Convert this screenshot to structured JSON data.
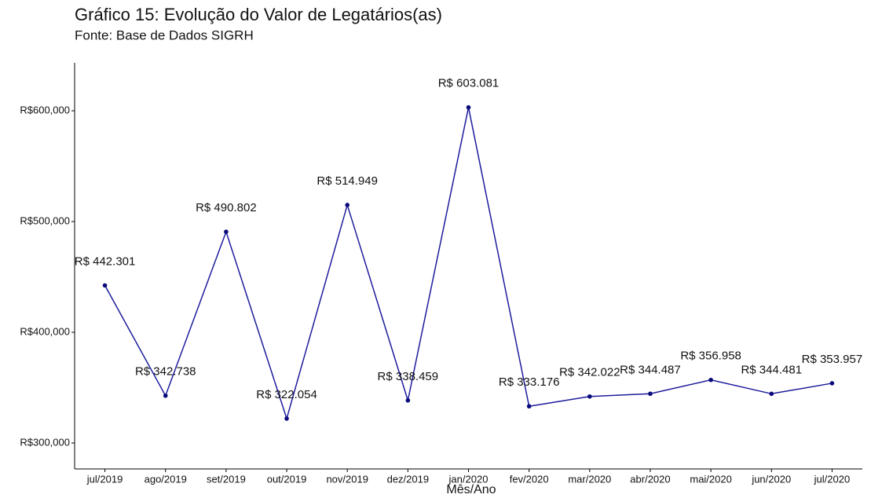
{
  "chart_data": {
    "type": "line",
    "title": "Gráfico 15: Evolução do Valor de Legatários(as)",
    "subtitle": "Fonte: Base de Dados SIGRH",
    "x_label": "Mês/Ano",
    "categories": [
      "jul/2019",
      "ago/2019",
      "set/2019",
      "out/2019",
      "nov/2019",
      "dez/2019",
      "jan/2020",
      "fev/2020",
      "mar/2020",
      "abr/2020",
      "mai/2020",
      "jun/2020",
      "jul/2020"
    ],
    "series": [
      {
        "name": "Valor",
        "color": "#1c1c9c",
        "values": [
          442301,
          342738,
          490802,
          322054,
          514949,
          338459,
          603081,
          333176,
          342022,
          344487,
          356958,
          344481,
          353957
        ],
        "value_labels": [
          "R$ 442.301",
          "R$ 342.738",
          "R$ 490.802",
          "R$ 322.054",
          "R$ 514.949",
          "R$ 338.459",
          "R$ 603.081",
          "R$ 333.176",
          "R$ 342.022",
          "R$ 344.487",
          "R$ 356.958",
          "R$ 344.481",
          "R$ 353.957"
        ]
      }
    ],
    "ylim": [
      276600,
      643300
    ],
    "yticks": [
      {
        "value": 300000,
        "label": "R$300,000"
      },
      {
        "value": 400000,
        "label": "R$400,000"
      },
      {
        "value": 500000,
        "label": "R$500,000"
      },
      {
        "value": 600000,
        "label": "R$600,000"
      }
    ],
    "grid": false
  }
}
